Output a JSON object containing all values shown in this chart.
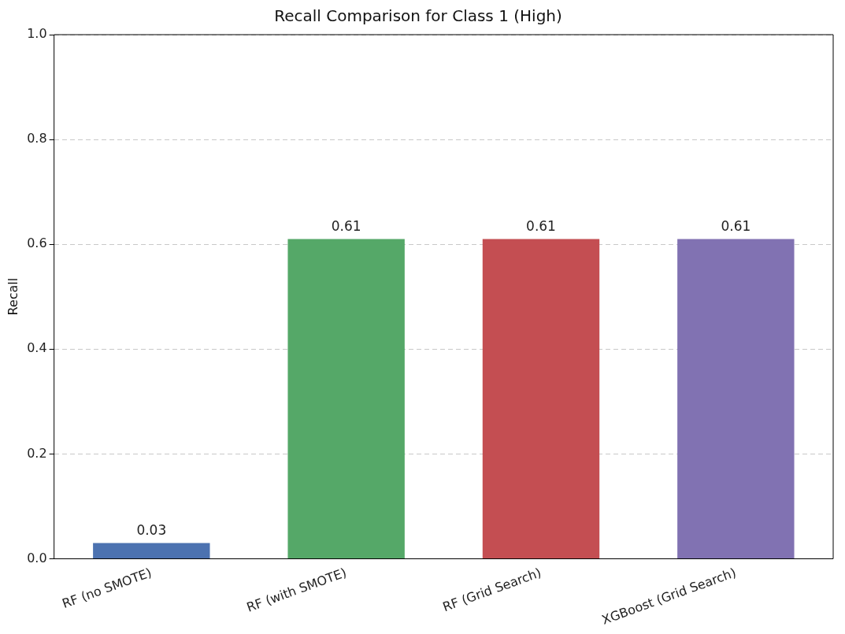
{
  "chart_data": {
    "type": "bar",
    "title": "Recall Comparison for Class 1 (High)",
    "ylabel": "Recall",
    "categories": [
      "RF (no SMOTE)",
      "RF (with SMOTE)",
      "RF (Grid Search)",
      "XGBoost (Grid Search)"
    ],
    "values": [
      0.03,
      0.61,
      0.61,
      0.61
    ],
    "colors": [
      "#4c72b0",
      "#55a868",
      "#c44e52",
      "#8172b2"
    ],
    "ylim": [
      0,
      1
    ],
    "yticks": [
      {
        "value": 0,
        "label": "0.0"
      },
      {
        "value": 0.2,
        "label": "0.2"
      },
      {
        "value": 0.4,
        "label": "0.4"
      },
      {
        "value": 0.6,
        "label": "0.6"
      },
      {
        "value": 0.8,
        "label": "0.8"
      },
      {
        "value": 1,
        "label": "1.0"
      }
    ],
    "grid": "y",
    "data_labels": true
  }
}
